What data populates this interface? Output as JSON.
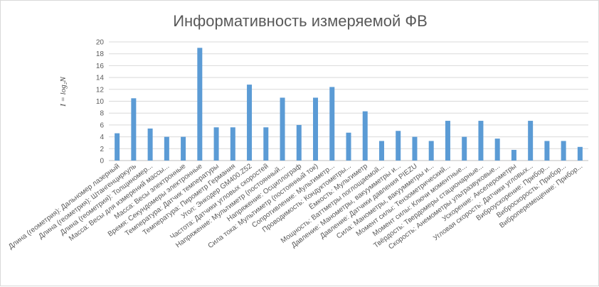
{
  "chart_data": {
    "type": "bar",
    "title": "Информативность измеряемой ФВ",
    "ylabel": "I = log₂N",
    "xlabel": "",
    "ylim": [
      0,
      20
    ],
    "yticks": [
      0,
      2,
      4,
      6,
      8,
      10,
      12,
      14,
      16,
      18,
      20
    ],
    "grid": true,
    "legend": "none",
    "bar_color": "#5b9bd5",
    "categories": [
      "Длина (геометрия): Дальномер лазерный",
      "Длина (геометрия): Штангенциркуль",
      "Длина (геометрия): Толщиномер...",
      "Масса: Весы для измерений массы...",
      "Масса: Весы электронные",
      "Время: Секундомеры электронные",
      "Температура: Датчик температуры",
      "Температура: Пирометр Германия",
      "Угол: Энкодер GM400.Z52",
      "Частота: Датчики угловых скоростей",
      "Напряжение: Мультиметр (постоянный...",
      "Напряжение: Осциллограф",
      "Сила тока: Мультиметр (постоянный ток)",
      "Сопротивление: Мультиметр...",
      "Проводимость: Кондуктометры...",
      "Ёмкость: Мультиметр",
      "Мощность: Ваттметры поглощаемой...",
      "Давление: Манометры, вакуумметры и...",
      "Давление: Датчики давления PIEZU",
      "Сила: Манометры, вакуумметры и...",
      "Момент силы: Тензометрический...",
      "Момент силы: Ключи моментные...",
      "Твёрдость: Твердомеры стационарные...",
      "Скорость: Анемометры ультразвуковые...",
      "Ускорение: Акселерометры",
      "Угловая скорость: Датчики угловых...",
      "Виброускорение: Прибор...",
      "Виброскорость: Прибор...",
      "Виброперемещение: Прибор..."
    ],
    "values": [
      4.6,
      10.5,
      5.4,
      4.0,
      4.0,
      19.0,
      5.6,
      5.6,
      12.8,
      5.6,
      10.6,
      6.0,
      10.6,
      12.4,
      4.7,
      8.3,
      3.3,
      5.0,
      4.0,
      3.3,
      6.7,
      4.0,
      6.7,
      3.7,
      1.8,
      6.7,
      3.3,
      3.3,
      2.3
    ]
  }
}
